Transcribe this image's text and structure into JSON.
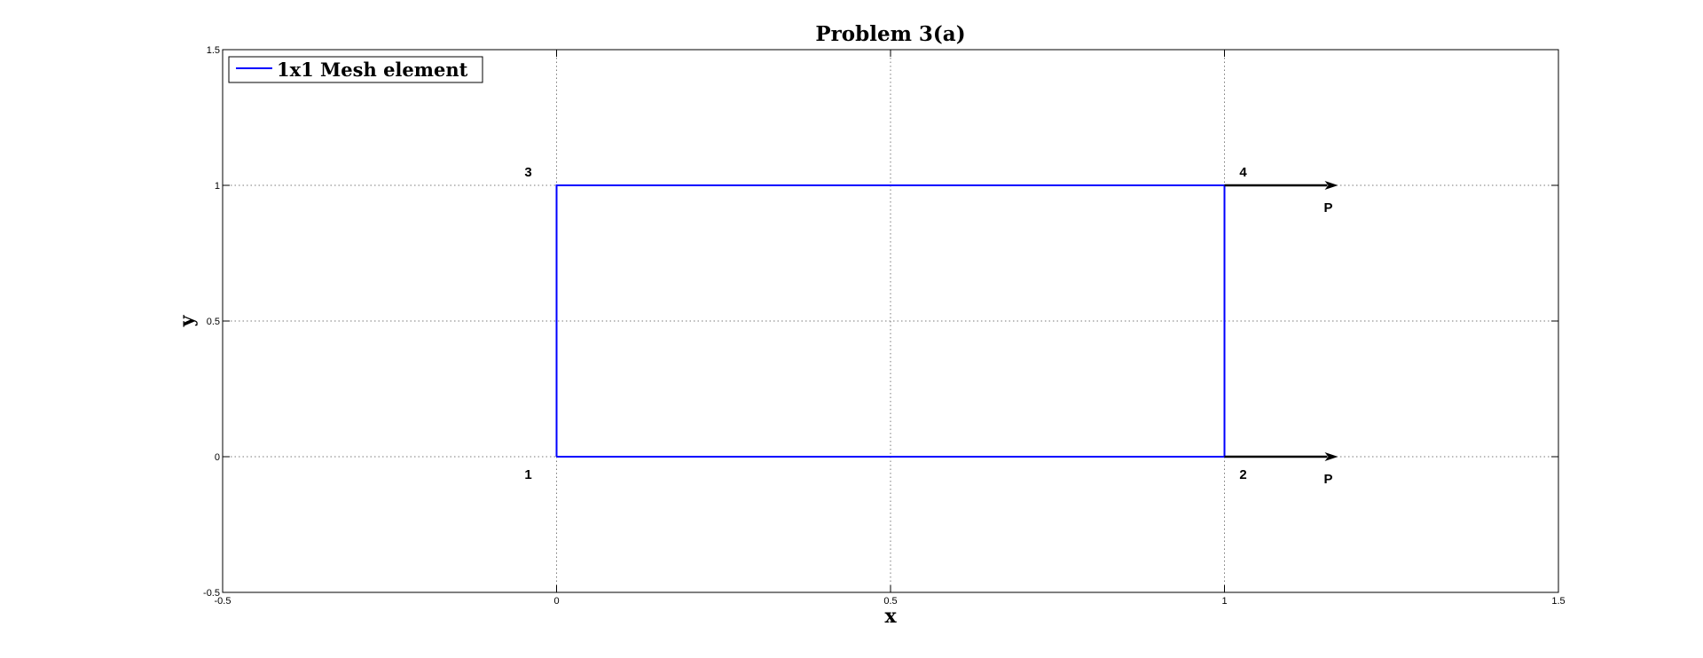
{
  "chart_data": {
    "type": "line",
    "title": "Problem 3(a)",
    "xlabel": "x",
    "ylabel": "y",
    "xlim": [
      -0.5,
      1.5
    ],
    "ylim": [
      -0.5,
      1.5
    ],
    "x_ticks": [
      -0.5,
      0,
      0.5,
      1,
      1.5
    ],
    "y_ticks": [
      -0.5,
      0,
      0.5,
      1,
      1.5
    ],
    "x_tick_labels": [
      "-0.5",
      "0",
      "0.5",
      "1",
      "1.5"
    ],
    "y_tick_labels": [
      "-0.5",
      "0",
      "0.5",
      "1",
      "1.5"
    ],
    "grid": true,
    "legend_position": "top-left",
    "series": [
      {
        "name": "1x1 Mesh element",
        "color": "#0000ff",
        "x": [
          0,
          1,
          1,
          0,
          0
        ],
        "y": [
          0,
          0,
          1,
          1,
          0
        ]
      }
    ],
    "node_labels": [
      {
        "text": "1",
        "x": 0,
        "y": 0
      },
      {
        "text": "2",
        "x": 1,
        "y": 0
      },
      {
        "text": "3",
        "x": 0,
        "y": 1
      },
      {
        "text": "4",
        "x": 1,
        "y": 1
      }
    ],
    "load_arrows": [
      {
        "label": "P",
        "x_start": 1,
        "x_end": 1.17,
        "y": 1,
        "color": "#000000"
      },
      {
        "label": "P",
        "x_start": 1,
        "x_end": 1.17,
        "y": 0,
        "color": "#000000"
      }
    ]
  }
}
